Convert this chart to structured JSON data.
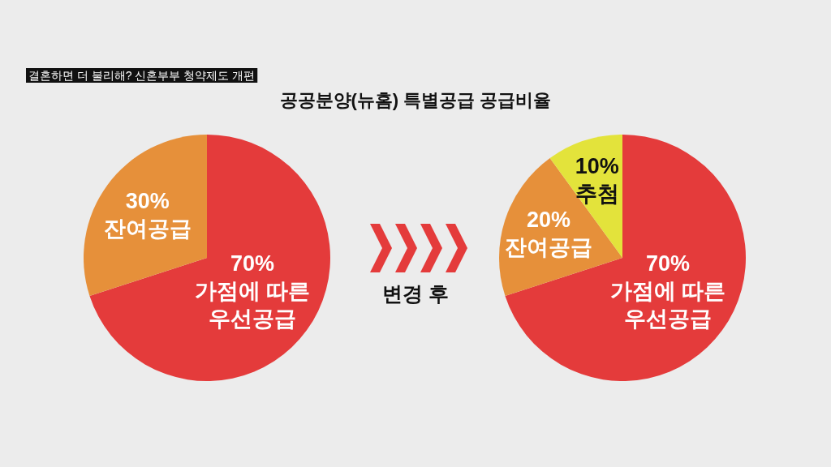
{
  "chart_data": [
    {
      "type": "pie",
      "title": "공공분양(뉴홈) 특별공급 공급비율",
      "subtitle": "결혼하면 더 불리해? 신혼부부 청약제도 개편",
      "categories": [
        "가점에 따른 우선공급",
        "잔여공급"
      ],
      "values": [
        70,
        30
      ],
      "colors": [
        "#e43b3b",
        "#e6903a"
      ],
      "value_labels": [
        "70%",
        "30%"
      ]
    },
    {
      "type": "pie",
      "categories": [
        "가점에 따른 우선공급",
        "잔여공급",
        "추첨"
      ],
      "values": [
        70,
        20,
        10
      ],
      "colors": [
        "#e43b3b",
        "#e6903a",
        "#e3e33b"
      ],
      "value_labels": [
        "70%",
        "20%",
        "10%"
      ],
      "annotations": [
        "변경 후"
      ]
    }
  ]
}
